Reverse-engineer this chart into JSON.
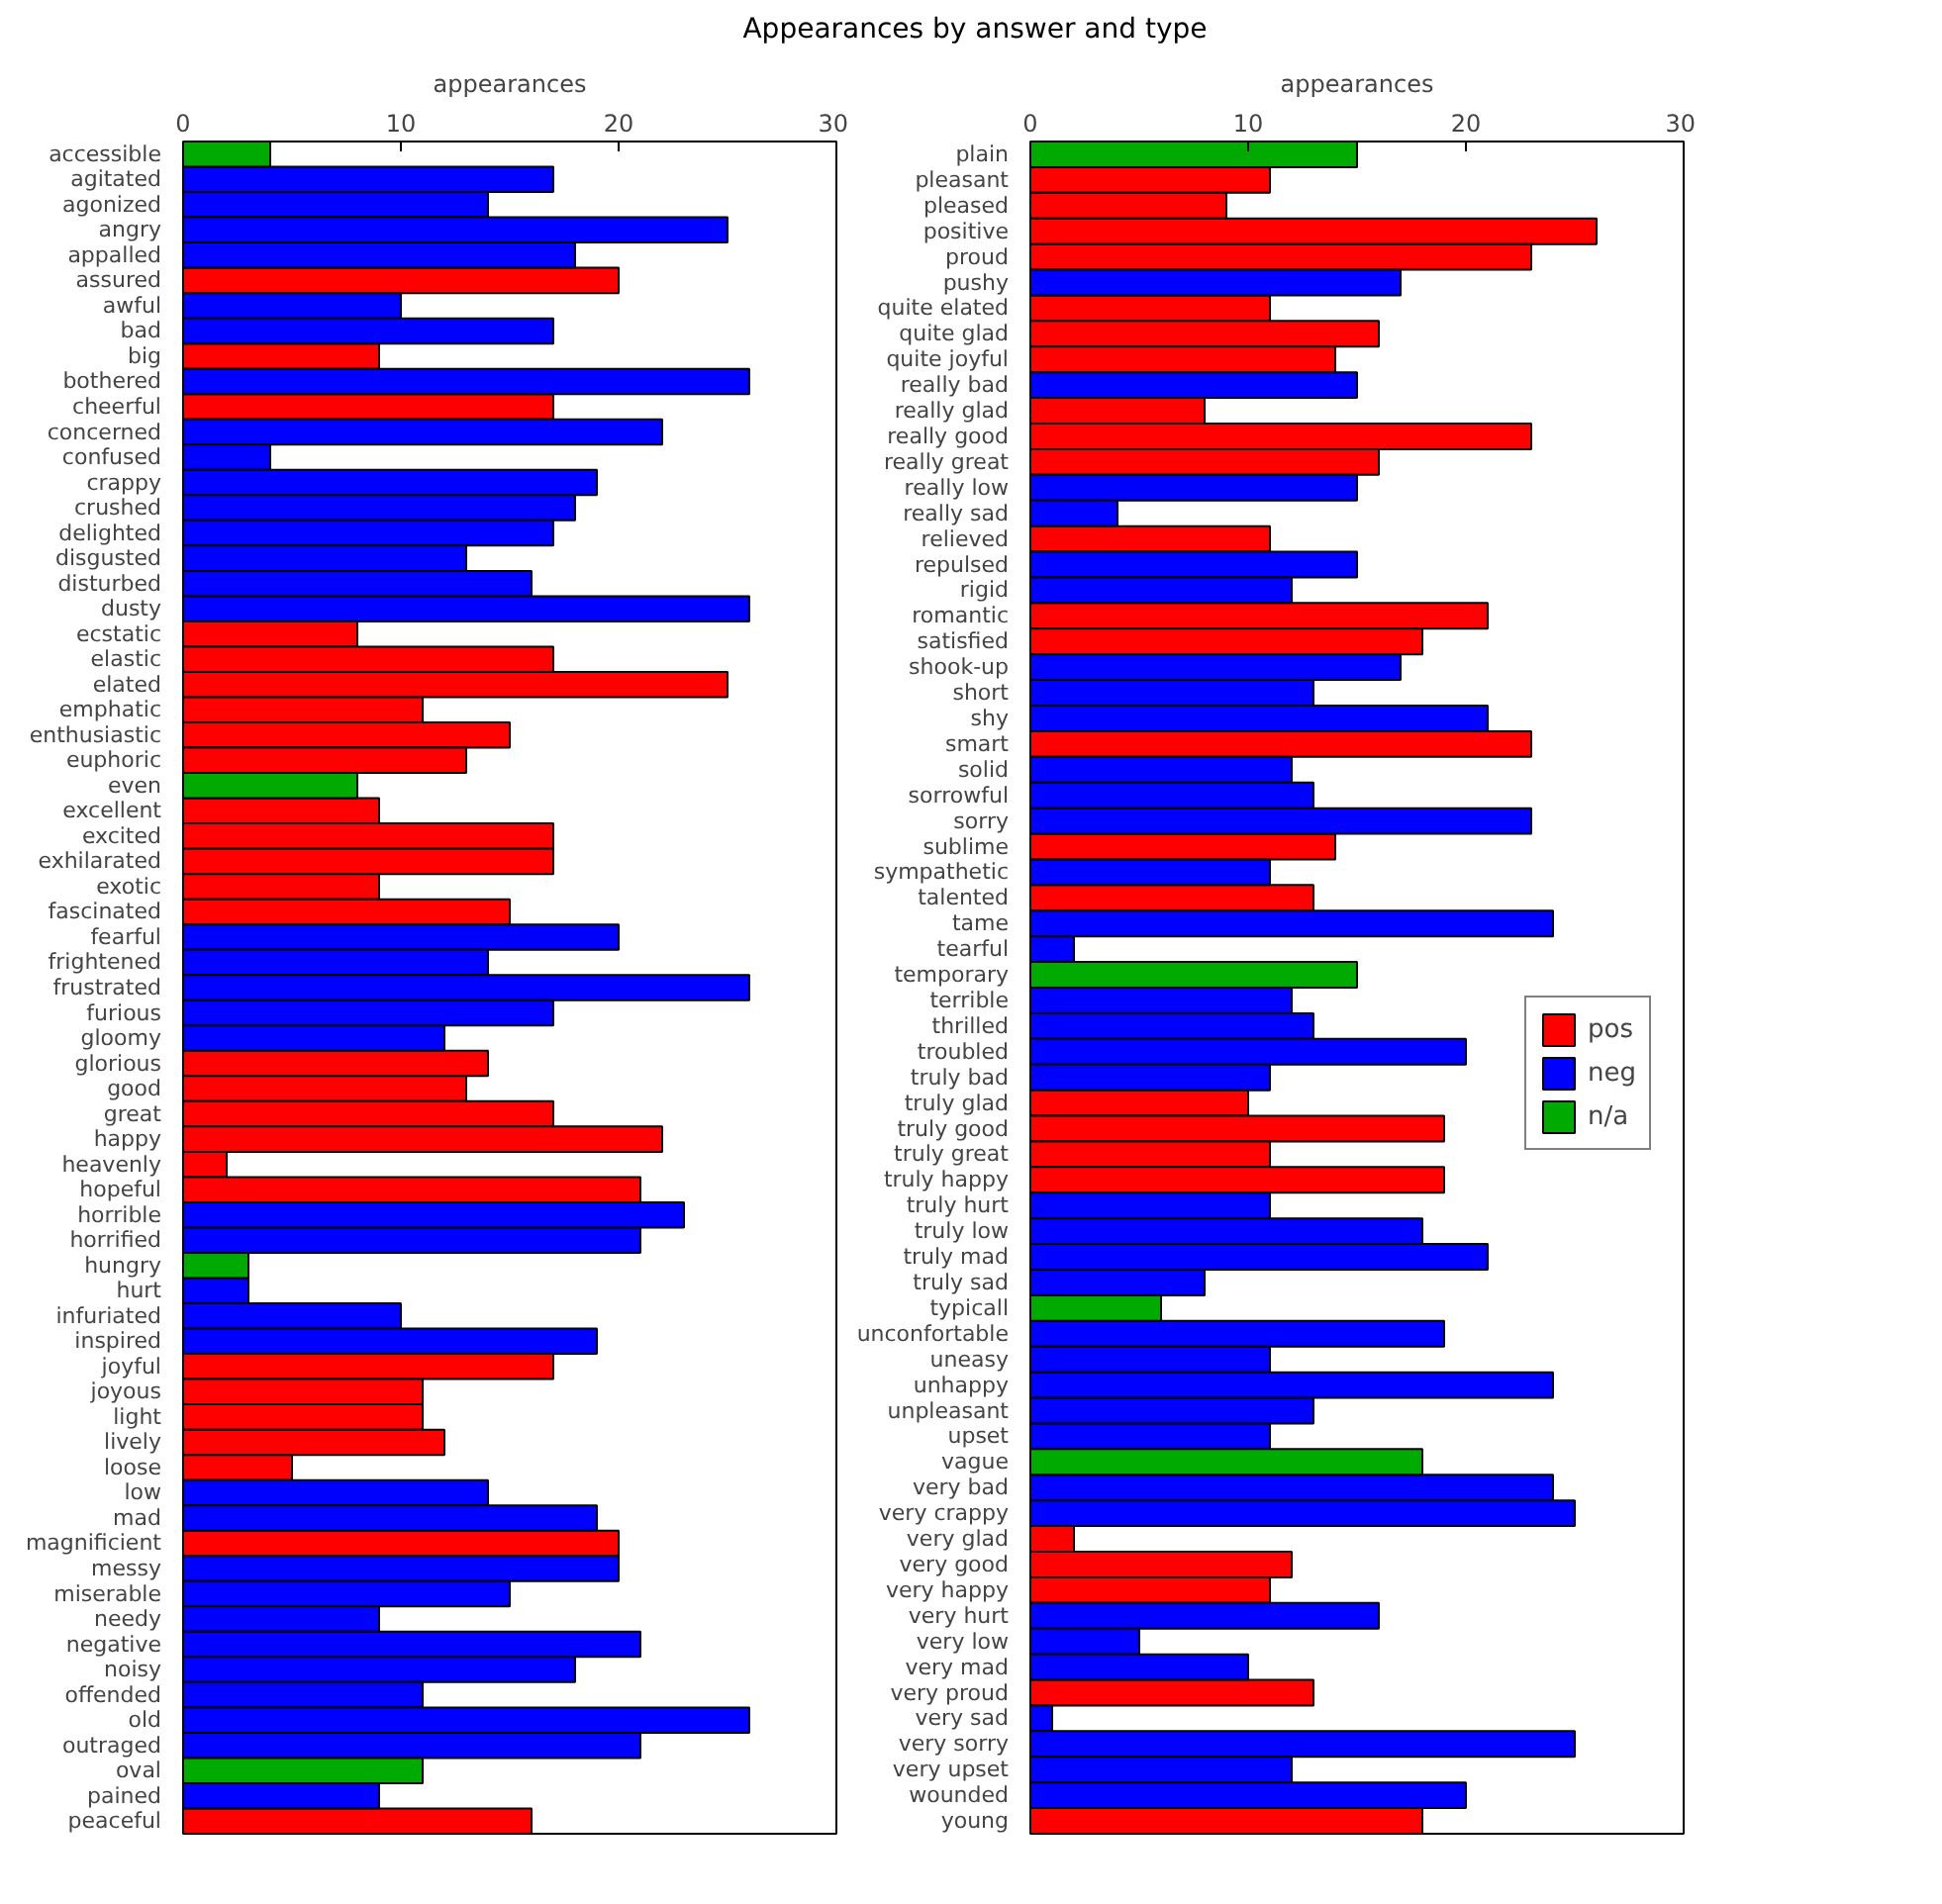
{
  "chart_data": [
    {
      "type": "bar",
      "orientation": "horizontal",
      "title": "Appearances by answer and type",
      "xlabel": "appearances",
      "xlim": [
        0,
        30
      ],
      "xticks": [
        0,
        10,
        20,
        30
      ],
      "grid": false,
      "legend": false,
      "categories": [
        "accessible",
        "agitated",
        "agonized",
        "angry",
        "appalled",
        "assured",
        "awful",
        "bad",
        "big",
        "bothered",
        "cheerful",
        "concerned",
        "confused",
        "crappy",
        "crushed",
        "delighted",
        "disgusted",
        "disturbed",
        "dusty",
        "ecstatic",
        "elastic",
        "elated",
        "emphatic",
        "enthusiastic",
        "euphoric",
        "even",
        "excellent",
        "excited",
        "exhilarated",
        "exotic",
        "fascinated",
        "fearful",
        "frightened",
        "frustrated",
        "furious",
        "gloomy",
        "glorious",
        "good",
        "great",
        "happy",
        "heavenly",
        "hopeful",
        "horrible",
        "horrified",
        "hungry",
        "hurt",
        "infuriated",
        "inspired",
        "joyful",
        "joyous",
        "light",
        "lively",
        "loose",
        "low",
        "mad",
        "magnificient",
        "messy",
        "miserable",
        "needy",
        "negative",
        "noisy",
        "offended",
        "old",
        "outraged",
        "oval",
        "pained",
        "peaceful"
      ],
      "series": [
        {
          "color": "#ff0000",
          "values": [
            null,
            null,
            null,
            null,
            null,
            20,
            null,
            null,
            9,
            null,
            17,
            null,
            null,
            null,
            null,
            null,
            null,
            null,
            null,
            8,
            17,
            25,
            11,
            15,
            13,
            null,
            9,
            17,
            17,
            9,
            15,
            null,
            null,
            null,
            null,
            null,
            14,
            13,
            17,
            22,
            2,
            21,
            null,
            null,
            null,
            null,
            null,
            null,
            17,
            11,
            11,
            12,
            5,
            null,
            null,
            20,
            null,
            null,
            null,
            null,
            null,
            null,
            null,
            null,
            null,
            null,
            16
          ]
        },
        {
          "color": "#0000ff",
          "values": [
            null,
            17,
            14,
            25,
            18,
            null,
            10,
            17,
            null,
            26,
            null,
            22,
            4,
            19,
            18,
            17,
            13,
            16,
            26,
            null,
            null,
            null,
            null,
            null,
            null,
            null,
            null,
            null,
            null,
            null,
            null,
            20,
            14,
            26,
            17,
            12,
            null,
            null,
            null,
            null,
            null,
            null,
            23,
            21,
            null,
            3,
            10,
            19,
            null,
            null,
            null,
            null,
            null,
            14,
            19,
            null,
            20,
            15,
            9,
            21,
            18,
            11,
            26,
            21,
            null,
            9,
            null
          ]
        },
        {
          "color": "#00aa00",
          "values": [
            4,
            null,
            null,
            null,
            null,
            null,
            null,
            null,
            null,
            null,
            null,
            null,
            null,
            null,
            null,
            null,
            null,
            null,
            null,
            null,
            null,
            null,
            null,
            null,
            null,
            8,
            null,
            null,
            null,
            null,
            null,
            null,
            null,
            null,
            null,
            null,
            null,
            null,
            null,
            null,
            null,
            null,
            null,
            null,
            3,
            null,
            null,
            null,
            null,
            null,
            null,
            null,
            null,
            null,
            null,
            null,
            null,
            null,
            null,
            null,
            null,
            null,
            null,
            null,
            11,
            null,
            null
          ]
        }
      ]
    },
    {
      "type": "bar",
      "orientation": "horizontal",
      "xlabel": "appearances",
      "xlim": [
        0,
        30
      ],
      "xticks": [
        0,
        10,
        20,
        30
      ],
      "grid": false,
      "legend": "right",
      "categories": [
        "plain",
        "pleasant",
        "pleased",
        "positive",
        "proud",
        "pushy",
        "quite elated",
        "quite glad",
        "quite joyful",
        "really bad",
        "really glad",
        "really good",
        "really great",
        "really low",
        "really sad",
        "relieved",
        "repulsed",
        "rigid",
        "romantic",
        "satisfied",
        "shook-up",
        "short",
        "shy",
        "smart",
        "solid",
        "sorrowful",
        "sorry",
        "sublime",
        "sympathetic",
        "talented",
        "tame",
        "tearful",
        "temporary",
        "terrible",
        "thrilled",
        "troubled",
        "truly bad",
        "truly glad",
        "truly good",
        "truly great",
        "truly happy",
        "truly hurt",
        "truly low",
        "truly mad",
        "truly sad",
        "typicall",
        "unconfortable",
        "uneasy",
        "unhappy",
        "unpleasant",
        "upset",
        "vague",
        "very bad",
        "very crappy",
        "very glad",
        "very good",
        "very happy",
        "very hurt",
        "very low",
        "very mad",
        "very proud",
        "very sad",
        "very sorry",
        "very upset",
        "wounded",
        "young"
      ],
      "series": [
        {
          "name": "pos",
          "color": "#ff0000",
          "values": [
            null,
            11,
            9,
            26,
            23,
            null,
            11,
            16,
            14,
            null,
            8,
            23,
            16,
            null,
            null,
            11,
            null,
            null,
            21,
            18,
            null,
            null,
            null,
            23,
            null,
            null,
            null,
            14,
            null,
            13,
            null,
            null,
            null,
            null,
            null,
            null,
            null,
            10,
            19,
            11,
            19,
            null,
            null,
            null,
            null,
            null,
            null,
            null,
            null,
            null,
            null,
            null,
            null,
            null,
            2,
            12,
            11,
            null,
            null,
            null,
            13,
            null,
            null,
            null,
            null,
            18
          ]
        },
        {
          "name": "neg",
          "color": "#0000ff",
          "values": [
            null,
            null,
            null,
            null,
            null,
            17,
            null,
            null,
            null,
            15,
            null,
            null,
            null,
            15,
            4,
            null,
            15,
            12,
            null,
            null,
            17,
            13,
            21,
            null,
            12,
            13,
            23,
            null,
            11,
            null,
            24,
            2,
            null,
            12,
            13,
            20,
            11,
            null,
            null,
            null,
            null,
            11,
            18,
            21,
            8,
            null,
            19,
            11,
            24,
            13,
            11,
            null,
            24,
            25,
            null,
            null,
            null,
            16,
            5,
            10,
            null,
            1,
            25,
            12,
            20,
            null
          ]
        },
        {
          "name": "n/a",
          "color": "#00aa00",
          "values": [
            15,
            null,
            null,
            null,
            null,
            null,
            null,
            null,
            null,
            null,
            null,
            null,
            null,
            null,
            null,
            null,
            null,
            null,
            null,
            null,
            null,
            null,
            null,
            null,
            null,
            null,
            null,
            null,
            null,
            null,
            null,
            null,
            15,
            null,
            null,
            null,
            null,
            null,
            null,
            null,
            null,
            null,
            null,
            null,
            null,
            6,
            null,
            null,
            null,
            null,
            null,
            18,
            null,
            null,
            null,
            null,
            null,
            null,
            null,
            null,
            null,
            null,
            null,
            null,
            null,
            null
          ]
        }
      ]
    }
  ]
}
